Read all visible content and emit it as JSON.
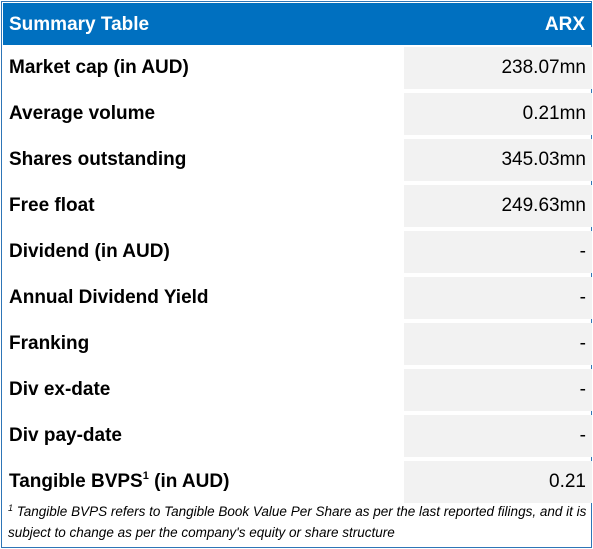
{
  "table": {
    "title": "Summary Table",
    "ticker": "ARX",
    "rows": [
      {
        "label": "Market cap (in AUD)",
        "value": "238.07mn"
      },
      {
        "label": "Average volume",
        "value": "0.21mn"
      },
      {
        "label": "Shares outstanding",
        "value": "345.03mn"
      },
      {
        "label": "Free float",
        "value": "249.63mn"
      },
      {
        "label": "Dividend (in AUD)",
        "value": "-"
      },
      {
        "label": "Annual Dividend Yield",
        "value": "-"
      },
      {
        "label": "Franking",
        "value": "-"
      },
      {
        "label": "Div ex-date",
        "value": "-"
      },
      {
        "label": "Div pay-date",
        "value": "-"
      },
      {
        "label_main": "Tangible BVPS",
        "label_sup": "1",
        "label_suffix": " (in AUD)",
        "value": "0.21"
      }
    ],
    "footnote": {
      "marker": "1",
      "text": " Tangible BVPS refers to Tangible Book Value Per Share as per the last reported filings, and it is subject to change as per the company's equity or share structure"
    }
  },
  "colors": {
    "header_bg": "#0070C0",
    "header_text": "#FFFFFF",
    "value_bg": "#F2F2F2",
    "border": "#2E75B6"
  }
}
